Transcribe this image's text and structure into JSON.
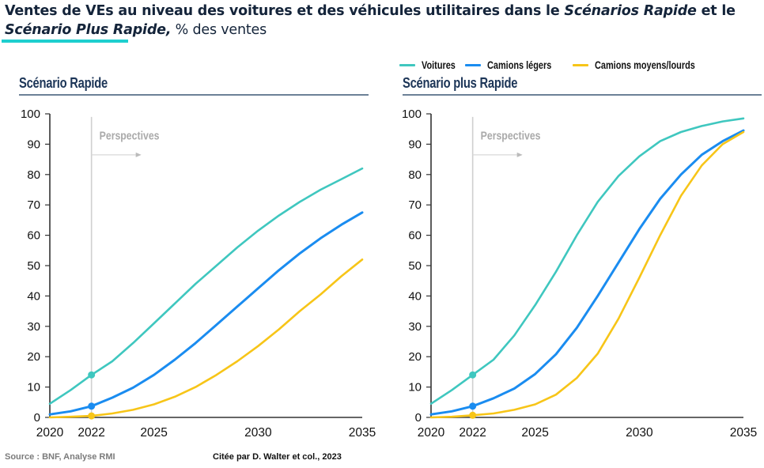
{
  "header": {
    "title_part1": "Ventes de VEs au niveau des voitures et des véhicules utilitaires dans le ",
    "title_italic1": "Scénarios Rapide",
    "title_part2": " et le ",
    "title_italic2": "Scénario Plus Rapide,",
    "title_part3": " % des ventes",
    "accent_color": "#1ecfcf"
  },
  "legend": {
    "items": [
      {
        "label": "Voitures",
        "color": "#3fc7bf"
      },
      {
        "label": "Camions légers",
        "color": "#1a8cf0"
      },
      {
        "label": "Camions moyens/lourds",
        "color": "#f7c518"
      }
    ]
  },
  "footer": {
    "source": "Source : BNF, Analyse RMI",
    "citation": "Citée par D. Walter et col., 2023"
  },
  "chart_data": [
    {
      "type": "line",
      "title": "Scénario Rapide",
      "xlabel": "",
      "ylabel": "% des ventes",
      "xlim": [
        2020,
        2035
      ],
      "ylim": [
        0,
        100
      ],
      "yticks": [
        0,
        10,
        20,
        30,
        40,
        50,
        60,
        70,
        80,
        90,
        100
      ],
      "xticks": [
        2020,
        2022,
        2025,
        2030,
        2035
      ],
      "grid": false,
      "annotation": {
        "text": "Perspectives",
        "x": 2022
      },
      "marker_year": 2022,
      "x": [
        2020,
        2021,
        2022,
        2023,
        2024,
        2025,
        2026,
        2027,
        2028,
        2029,
        2030,
        2031,
        2032,
        2033,
        2034,
        2035
      ],
      "series": [
        {
          "name": "Voitures",
          "color": "#3fc7bf",
          "values": [
            4.5,
            9,
            14,
            18.5,
            24.5,
            31,
            37.5,
            44,
            50,
            56,
            61.5,
            66.5,
            71,
            75,
            78.5,
            82
          ]
        },
        {
          "name": "Camions légers",
          "color": "#1a8cf0",
          "values": [
            1,
            2,
            3.7,
            6.5,
            9.8,
            14,
            19,
            24.5,
            30.5,
            36.5,
            42.5,
            48.5,
            54,
            59,
            63.5,
            67.5
          ]
        },
        {
          "name": "Camions moyens/lourds",
          "color": "#f7c518",
          "values": [
            0,
            0.2,
            0.5,
            1.3,
            2.5,
            4.3,
            6.8,
            10,
            14,
            18.5,
            23.5,
            29,
            35,
            40.5,
            46.5,
            52
          ]
        }
      ]
    },
    {
      "type": "line",
      "title": "Scénario plus Rapide",
      "xlabel": "",
      "ylabel": "% des ventes",
      "xlim": [
        2020,
        2035
      ],
      "ylim": [
        0,
        100
      ],
      "yticks": [
        0,
        10,
        20,
        30,
        40,
        50,
        60,
        70,
        80,
        90,
        100
      ],
      "xticks": [
        2020,
        2022,
        2025,
        2030,
        2035
      ],
      "grid": false,
      "annotation": {
        "text": "Perspectives",
        "x": 2022
      },
      "marker_year": 2022,
      "legend": "top",
      "x": [
        2020,
        2021,
        2022,
        2023,
        2024,
        2025,
        2026,
        2027,
        2028,
        2029,
        2030,
        2031,
        2032,
        2033,
        2034,
        2035
      ],
      "series": [
        {
          "name": "Voitures",
          "color": "#3fc7bf",
          "values": [
            4.5,
            9,
            14,
            19,
            27,
            37,
            48,
            60,
            71,
            79.5,
            86,
            91,
            94,
            96,
            97.5,
            98.5
          ]
        },
        {
          "name": "Camions légers",
          "color": "#1a8cf0",
          "values": [
            1,
            2,
            3.7,
            6.3,
            9.5,
            14.3,
            20.8,
            29.5,
            40,
            51,
            62,
            72,
            80,
            86.5,
            91,
            94.5
          ]
        },
        {
          "name": "Camions moyens/lourds",
          "color": "#f7c518",
          "values": [
            0,
            0.2,
            0.7,
            1.3,
            2.5,
            4.3,
            7.5,
            13,
            21,
            32.5,
            46,
            60,
            73,
            83,
            90,
            94
          ]
        }
      ]
    }
  ]
}
